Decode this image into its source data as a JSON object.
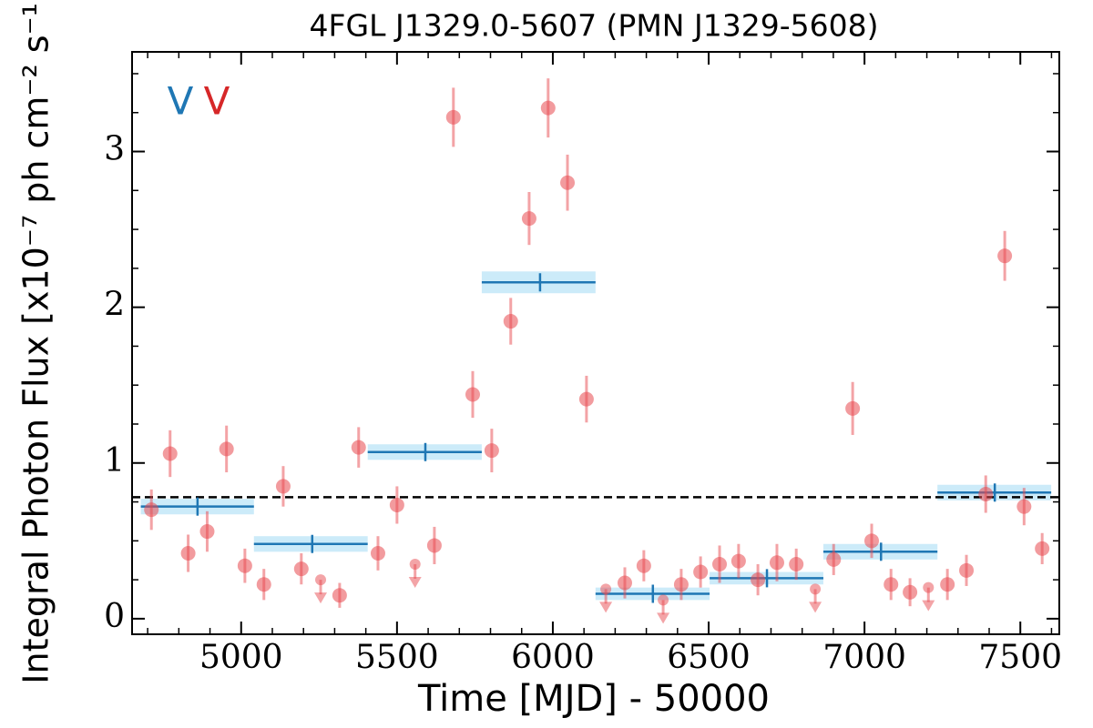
{
  "chart_data": {
    "type": "scatter",
    "title": "4FGL J1329.0-5607 (PMN J1329-5608)",
    "xlabel": "Time [MJD] - 50000",
    "ylabel": "Integral Photon Flux [x10⁻⁷ ph cm⁻² s⁻¹]",
    "annotations": [
      {
        "text": "V",
        "color": "#1f77b4"
      },
      {
        "text": "V",
        "color": "#d62728"
      }
    ],
    "xlim": [
      4650,
      7625
    ],
    "ylim": [
      -0.1,
      3.64
    ],
    "xticks": [
      5000,
      5500,
      6000,
      6500,
      7000,
      7500
    ],
    "yticks": [
      0,
      1,
      2,
      3
    ],
    "xminorticks": [
      4700,
      4800,
      4900,
      5100,
      5200,
      5300,
      5400,
      5600,
      5700,
      5800,
      5900,
      6100,
      6200,
      6300,
      6400,
      6600,
      6700,
      6800,
      6900,
      7100,
      7200,
      7300,
      7400,
      7600
    ],
    "yminorticks": [
      0.25,
      0.5,
      0.75,
      1.25,
      1.5,
      1.75,
      2.25,
      2.5,
      2.75,
      3.25,
      3.5
    ],
    "reference_line": 0.78,
    "points": {
      "color": "#e8494f",
      "x": [
        4712,
        4772,
        4830,
        4891,
        4953,
        5012,
        5073,
        5135,
        5193,
        5316,
        5377,
        5439,
        5500,
        5620,
        5681,
        5743,
        5804,
        5865,
        5924,
        5985,
        6047,
        6108,
        6231,
        6292,
        6412,
        6474,
        6535,
        6596,
        6658,
        6719,
        6781,
        6901,
        6962,
        7023,
        7085,
        7146,
        7266,
        7327,
        7389,
        7450,
        7512,
        7570
      ],
      "values": [
        0.7,
        1.06,
        0.42,
        0.56,
        1.09,
        0.34,
        0.22,
        0.85,
        0.32,
        0.15,
        1.1,
        0.42,
        0.73,
        0.47,
        3.22,
        1.44,
        1.08,
        1.91,
        2.57,
        3.28,
        2.8,
        1.41,
        0.23,
        0.34,
        0.22,
        0.3,
        0.35,
        0.37,
        0.25,
        0.36,
        0.35,
        0.38,
        1.35,
        0.5,
        0.22,
        0.17,
        0.22,
        0.31,
        0.8,
        2.33,
        0.72,
        0.45
      ],
      "errors": [
        0.13,
        0.15,
        0.12,
        0.13,
        0.15,
        0.11,
        0.1,
        0.13,
        0.1,
        0.08,
        0.13,
        0.11,
        0.12,
        0.12,
        0.19,
        0.15,
        0.14,
        0.15,
        0.17,
        0.19,
        0.18,
        0.15,
        0.1,
        0.1,
        0.1,
        0.1,
        0.12,
        0.11,
        0.1,
        0.12,
        0.1,
        0.1,
        0.17,
        0.11,
        0.1,
        0.09,
        0.1,
        0.1,
        0.12,
        0.16,
        0.12,
        0.1
      ]
    },
    "upper_limits": {
      "color": "#e8494f",
      "x": [
        5255,
        5558,
        6170,
        6354,
        6842,
        7205
      ],
      "values": [
        0.25,
        0.35,
        0.19,
        0.12,
        0.19,
        0.2
      ]
    },
    "bins": {
      "color": "#1f77b4",
      "band_color": "#bfe6f8",
      "x_start": [
        4678,
        5041,
        5406,
        5772,
        6137,
        6503,
        6868,
        7234
      ],
      "x_end": [
        5041,
        5406,
        5772,
        6137,
        6503,
        6868,
        7234,
        7599
      ],
      "x_center": [
        4860,
        5228,
        5591,
        5959,
        6321,
        6687,
        7053,
        7418
      ],
      "values": [
        0.72,
        0.48,
        1.07,
        2.16,
        0.16,
        0.26,
        0.43,
        0.81
      ],
      "errors": [
        0.05,
        0.05,
        0.05,
        0.07,
        0.04,
        0.04,
        0.05,
        0.05
      ]
    }
  }
}
